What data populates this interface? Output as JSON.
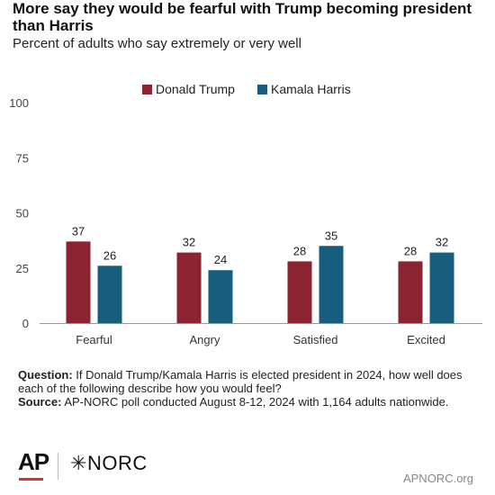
{
  "title": "More say they would be fearful with Trump becoming president than Harris",
  "subtitle": "Percent of adults who say extremely or very well",
  "notes": {
    "question_label": "Question:",
    "question_text": "If Donald Trump/Kamala Harris is elected president in 2024, how well does each of the following describe how you would feel?",
    "source_label": "Source:",
    "source_text": "AP-NORC poll conducted August 8-12, 2024 with 1,164 adults nationwide."
  },
  "footer": {
    "ap_logo": "AP",
    "norc_logo": "NORC",
    "site": "APNORC.org"
  },
  "colors": {
    "trump": "#8b2331",
    "harris": "#175e7e"
  },
  "chart_data": {
    "type": "bar",
    "categories": [
      "Fearful",
      "Angry",
      "Satisfied",
      "Excited"
    ],
    "series": [
      {
        "name": "Donald Trump",
        "values": [
          37,
          32,
          28,
          28
        ]
      },
      {
        "name": "Kamala Harris",
        "values": [
          26,
          24,
          35,
          32
        ]
      }
    ],
    "yticks": [
      0,
      25,
      50,
      75,
      100
    ],
    "ylim": [
      0,
      100
    ],
    "grid": false,
    "legend": "top-center",
    "data_labels": true
  }
}
